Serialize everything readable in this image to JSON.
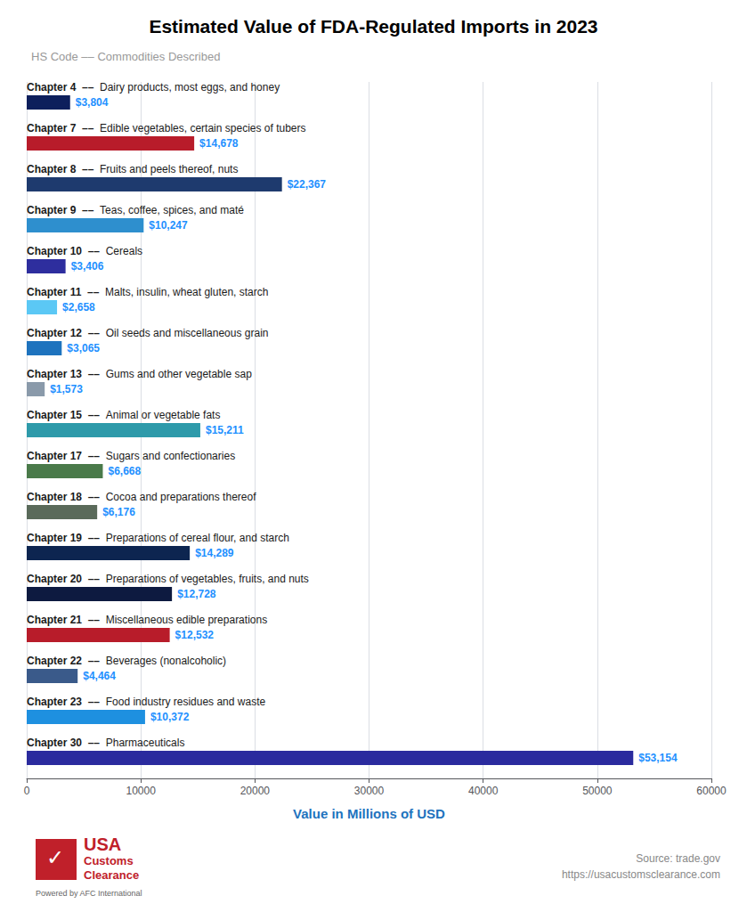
{
  "chart_data": {
    "type": "bar",
    "orientation": "horizontal",
    "title": "Estimated Value of FDA-Regulated Imports in 2023",
    "subtitle": "HS Code –– Commodities Described",
    "xlabel": "Value in Millions of USD",
    "categories": [
      "Chapter 4  ––  Dairy products, most eggs, and honey",
      "Chapter 7  ––  Edible vegetables, certain species of tubers",
      "Chapter 8  ––  Fruits and peels thereof, nuts",
      "Chapter 9  ––  Teas, coffee, spices, and maté",
      "Chapter 10  ––  Cereals",
      "Chapter 11  ––  Malts, insulin, wheat gluten, starch",
      "Chapter 12  ––  Oil seeds and miscellaneous grain",
      "Chapter 13  ––  Gums and other vegetable sap",
      "Chapter 15  ––  Animal or vegetable fats",
      "Chapter 17  ––  Sugars and confectionaries",
      "Chapter 18  ––  Cocoa and preparations thereof",
      "Chapter 19  ––  Preparations of cereal flour, and starch",
      "Chapter 20  ––  Preparations of vegetables, fruits, and nuts",
      "Chapter 21  ––  Miscellaneous edible preparations",
      "Chapter 22  ––  Beverages (nonalcoholic)",
      "Chapter 23  ––  Food industry residues and waste",
      "Chapter 30  ––  Pharmaceuticals"
    ],
    "values": [
      3804,
      14678,
      22367,
      10247,
      3406,
      2658,
      3065,
      1573,
      15211,
      6668,
      6176,
      14289,
      12728,
      12532,
      4464,
      10372,
      53154
    ],
    "value_labels": [
      "$3,804",
      "$14,678",
      "$22,367",
      "$10,247",
      "$3,406",
      "$2,658",
      "$3,065",
      "$1,573",
      "$15,211",
      "$6,668",
      "$6,176",
      "$14,289",
      "$12,728",
      "$12,532",
      "$4,464",
      "$10,372",
      "$53,154"
    ],
    "data_labels": true,
    "colors": [
      "#0d1f5c",
      "#b81c2a",
      "#1e3a6e",
      "#2e8fce",
      "#2e2e9e",
      "#5bc8f5",
      "#1e73be",
      "#8a9aaa",
      "#2e9aaa",
      "#4a7a4a",
      "#5a6a5a",
      "#0d2550",
      "#0d1a40",
      "#b81c2a",
      "#3a5a8a",
      "#1e90e0",
      "#2b2b9e"
    ],
    "xlim": [
      0,
      60000
    ],
    "xticks": [
      0,
      10000,
      20000,
      30000,
      40000,
      50000,
      60000
    ],
    "grid": true,
    "annotations": [
      "Source: trade.gov",
      "https://usacustomsclearance.com",
      "✓",
      "USA",
      "Customs",
      "Clearance",
      "Powered by AFC International"
    ]
  }
}
